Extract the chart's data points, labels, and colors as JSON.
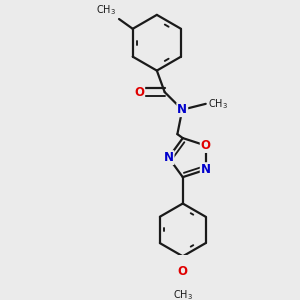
{
  "bg_color": "#ebebeb",
  "bond_color": "#1a1a1a",
  "bond_width": 1.6,
  "atom_colors": {
    "O": "#e00000",
    "N": "#0000cc",
    "C": "#1a1a1a"
  },
  "font_size_atom": 8.5,
  "font_size_small": 7.0
}
